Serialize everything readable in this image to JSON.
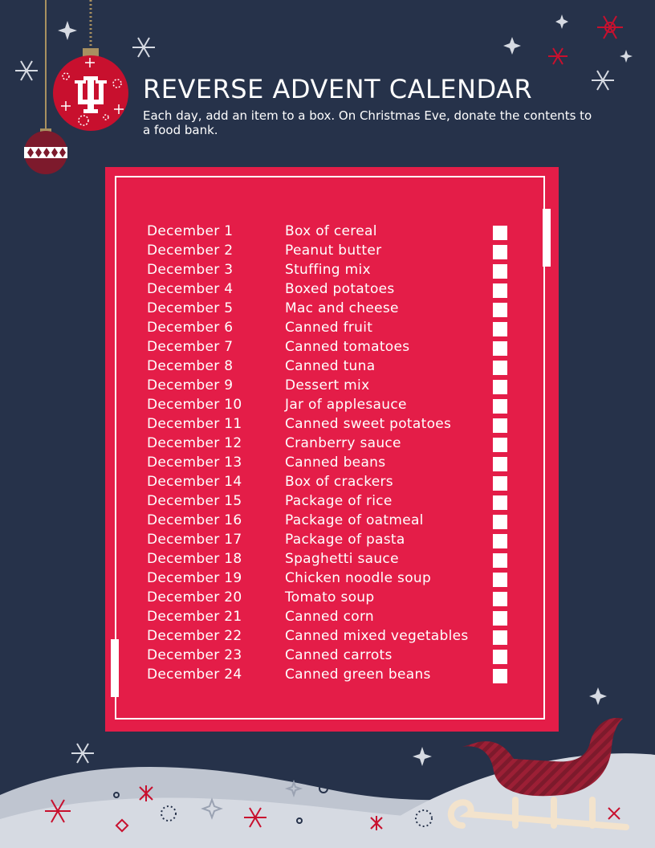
{
  "header": {
    "title": "REVERSE ADVENT CALENDAR",
    "subtitle": "Each day, add an item to a box. On Christmas Eve, donate the contents to a food bank."
  },
  "calendar": {
    "days": [
      {
        "date": "December 1",
        "item": "Box of cereal"
      },
      {
        "date": "December 2",
        "item": "Peanut butter"
      },
      {
        "date": "December 3",
        "item": "Stuffing mix"
      },
      {
        "date": "December 4",
        "item": "Boxed potatoes"
      },
      {
        "date": "December 5",
        "item": "Mac and cheese"
      },
      {
        "date": "December 6",
        "item": "Canned fruit"
      },
      {
        "date": "December 7",
        "item": "Canned tomatoes"
      },
      {
        "date": "December 8",
        "item": "Canned tuna"
      },
      {
        "date": "December 9",
        "item": "Dessert mix"
      },
      {
        "date": "December 10",
        "item": "Jar of applesauce"
      },
      {
        "date": "December 11",
        "item": "Canned sweet potatoes"
      },
      {
        "date": "December 12",
        "item": "Cranberry sauce"
      },
      {
        "date": "December 13",
        "item": "Canned beans"
      },
      {
        "date": "December 14",
        "item": "Box of crackers"
      },
      {
        "date": "December 15",
        "item": "Package of rice"
      },
      {
        "date": "December 16",
        "item": "Package of oatmeal"
      },
      {
        "date": "December 17",
        "item": "Package of pasta"
      },
      {
        "date": "December 18",
        "item": "Spaghetti sauce"
      },
      {
        "date": "December 19",
        "item": "Chicken noodle soup"
      },
      {
        "date": "December 20",
        "item": "Tomato soup"
      },
      {
        "date": "December 21",
        "item": "Canned corn"
      },
      {
        "date": "December 22",
        "item": "Canned mixed vegetables"
      },
      {
        "date": "December 23",
        "item": "Canned carrots"
      },
      {
        "date": "December 24",
        "item": "Canned green beans"
      }
    ]
  },
  "colors": {
    "background": "#26324a",
    "card": "#e41d48",
    "ornament_red": "#c8102e",
    "ornament_dark": "#7d1a2c",
    "gold": "#a89060",
    "snow": "#d6dae2",
    "sled_runner": "#f3e3cc"
  },
  "icons": [
    "iu-trident-logo",
    "ornament",
    "snowflake-icon",
    "sparkle-icon",
    "sled-icon"
  ]
}
